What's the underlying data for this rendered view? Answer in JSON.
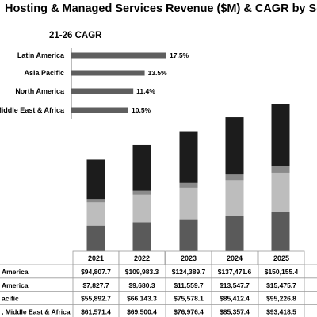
{
  "chart_data": [
    {
      "type": "bar",
      "stacked": true,
      "title": "Hosting & Managed Services Revenue ($M) & CAGR by Segment",
      "categories": [
        "2021",
        "2022",
        "2023",
        "2024",
        "2025"
      ],
      "series": [
        {
          "name": "America",
          "color": "#1c1c1c",
          "values": [
            94807.7,
            109983.3,
            124389.7,
            137471.6,
            150155.4
          ]
        },
        {
          "name": "America",
          "color": "#8a8a8a",
          "values": [
            7827.7,
            9680.3,
            11559.7,
            13547.7,
            15475.7
          ]
        },
        {
          "name": "acific",
          "color": "#bdbdbd",
          "values": [
            55892.7,
            66143.3,
            75578.1,
            85412.4,
            95226.8
          ]
        },
        {
          "name": "Middle East & Africa",
          "color": "#5a5a5a",
          "values": [
            61571.4,
            69500.4,
            76976.4,
            85357.4,
            93418.5
          ]
        }
      ],
      "table": {
        "row_labels": [
          "America",
          "America",
          "acific",
          ", Middle East & Africa"
        ],
        "cells": [
          [
            "$94,807.7",
            "$109,983.3",
            "$124,389.7",
            "$137,471.6",
            "$150,155.4"
          ],
          [
            "$7,827.7",
            "$9,680.3",
            "$11,559.7",
            "$13,547.7",
            "$15,475.7"
          ],
          [
            "$55,892.7",
            "$66,143.3",
            "$75,578.1",
            "$85,412.4",
            "$95,226.8"
          ],
          [
            "$61,571.4",
            "$69,500.4",
            "$76,976.4",
            "$85,357.4",
            "$93,418.5"
          ]
        ]
      }
    },
    {
      "type": "bar",
      "orientation": "horizontal",
      "title": "21-26 CAGR",
      "categories": [
        "Latin America",
        "Asia Pacific",
        "North America",
        "Middle East & Africa"
      ],
      "values": [
        17.5,
        13.5,
        11.4,
        10.5
      ],
      "value_labels": [
        "17.5%",
        "13.5%",
        "11.4%",
        "10.5%"
      ],
      "color": "#5f5f5f"
    }
  ]
}
